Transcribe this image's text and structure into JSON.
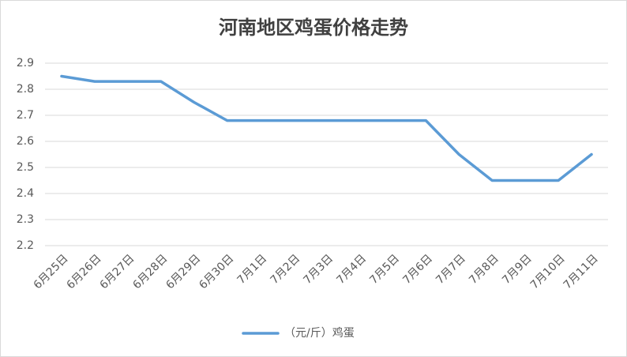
{
  "chart_data": {
    "type": "line",
    "title": "河南地区鸡蛋价格走势",
    "categories": [
      "6月25日",
      "6月26日",
      "6月27日",
      "6月28日",
      "6月29日",
      "6月30日",
      "7月1日",
      "7月2日",
      "7月3日",
      "7月4日",
      "7月5日",
      "7月6日",
      "7月7日",
      "7月8日",
      "7月9日",
      "7月10日",
      "7月11日"
    ],
    "series": [
      {
        "name": "（元/斤）鸡蛋",
        "color": "#5b9bd5",
        "values": [
          2.85,
          2.83,
          2.83,
          2.83,
          2.75,
          2.68,
          2.68,
          2.68,
          2.68,
          2.68,
          2.68,
          2.68,
          2.55,
          2.45,
          2.45,
          2.45,
          2.55
        ]
      }
    ],
    "ylim": [
      2.2,
      2.9
    ],
    "yticks": [
      2.2,
      2.3,
      2.4,
      2.5,
      2.6,
      2.7,
      2.8,
      2.9
    ],
    "grid": true,
    "legend": "bottom"
  }
}
